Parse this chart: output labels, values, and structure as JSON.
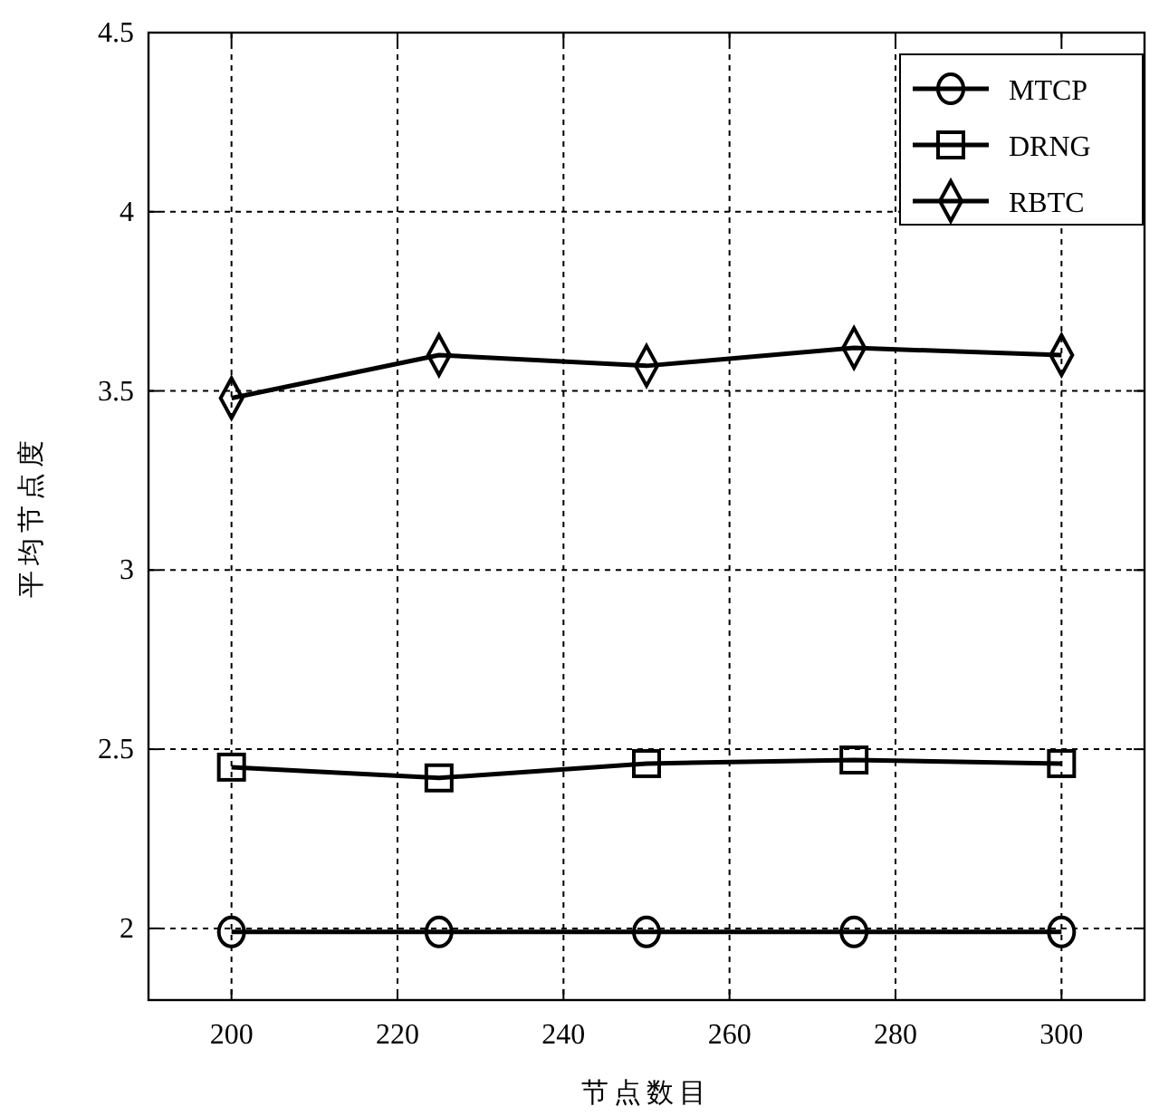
{
  "chart_data": {
    "type": "line",
    "xlabel": "节点数目",
    "ylabel": "平均节点度",
    "x": [
      200,
      225,
      250,
      275,
      300
    ],
    "xlim": [
      190,
      310
    ],
    "ylim": [
      1.8,
      4.5
    ],
    "xticks": [
      200,
      220,
      240,
      260,
      280,
      300
    ],
    "yticks": [
      2,
      2.5,
      3,
      3.5,
      4,
      4.5
    ],
    "grid": true,
    "legend": "top right",
    "series": [
      {
        "name": "MTCP",
        "color": "#000000",
        "marker": "circle",
        "values": [
          1.99,
          1.99,
          1.99,
          1.99,
          1.99
        ]
      },
      {
        "name": "DRNG",
        "color": "#000000",
        "marker": "square",
        "values": [
          2.45,
          2.42,
          2.46,
          2.47,
          2.46
        ]
      },
      {
        "name": "RBTC",
        "color": "#000000",
        "marker": "diamond",
        "values": [
          3.48,
          3.6,
          3.57,
          3.62,
          3.6
        ]
      }
    ]
  }
}
